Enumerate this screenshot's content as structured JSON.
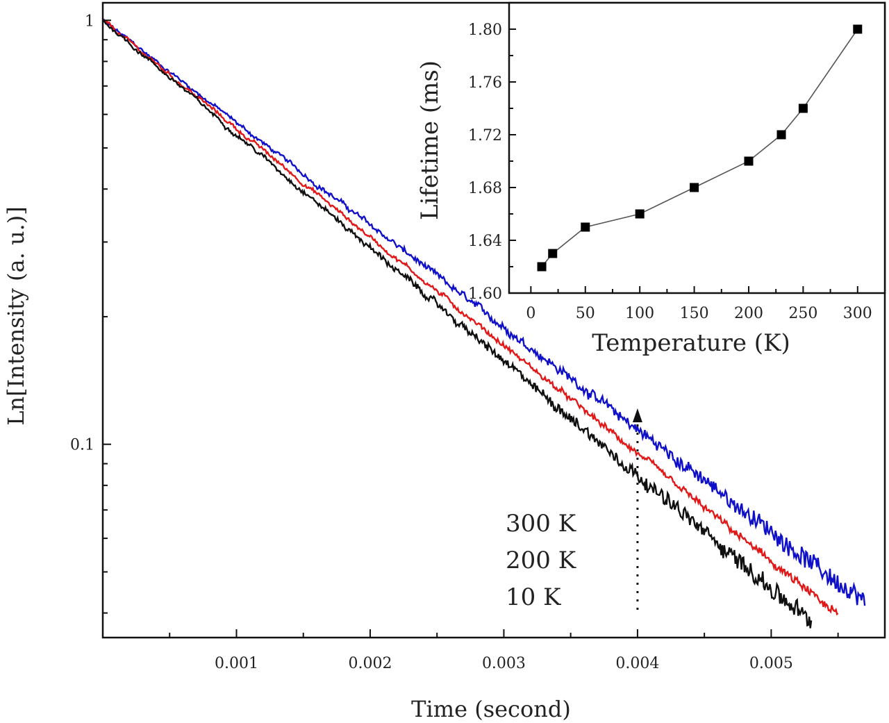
{
  "chart_data": [
    {
      "type": "line",
      "role": "main",
      "xlabel": "Time (second)",
      "ylabel": "Ln[Intensity (a. u.)]",
      "xlim": [
        0.0,
        0.00585
      ],
      "ylim": [
        0.035,
        1.1
      ],
      "yscale": "log",
      "xticks": [
        0.001,
        0.002,
        0.003,
        0.004,
        0.005
      ],
      "xtick_labels": [
        "0.001",
        "0.002",
        "0.003",
        "0.004",
        "0.005"
      ],
      "yticks": [
        0.1,
        1
      ],
      "ytick_labels": [
        "0.1",
        "1"
      ],
      "grid": false,
      "series": [
        {
          "name": "300 K",
          "color": "#1010c8",
          "x_start": 0.0,
          "x_end": 0.0057,
          "lifetime_ms": 1.8
        },
        {
          "name": "200 K",
          "color": "#e01818",
          "x_start": 0.0,
          "x_end": 0.0055,
          "lifetime_ms": 1.7
        },
        {
          "name": "10 K",
          "color": "#101010",
          "x_start": 0.0,
          "x_end": 0.0053,
          "lifetime_ms": 1.62
        }
      ],
      "legend_labels": [
        "300 K",
        "200 K",
        "10   K"
      ],
      "annotation_arrow_x": 0.004
    },
    {
      "type": "line",
      "role": "inset",
      "xlabel": "Temperature (K)",
      "ylabel": "Lifetime (ms)",
      "xlim": [
        -20,
        325
      ],
      "ylim": [
        1.6,
        1.82
      ],
      "xticks": [
        0,
        50,
        100,
        150,
        200,
        250,
        300
      ],
      "xtick_labels": [
        "0",
        "50",
        "100",
        "150",
        "200",
        "250",
        "300"
      ],
      "yticks": [
        1.6,
        1.64,
        1.68,
        1.72,
        1.76,
        1.8
      ],
      "ytick_labels": [
        "1.60",
        "1.64",
        "1.68",
        "1.72",
        "1.76",
        "1.80"
      ],
      "grid": false,
      "x": [
        10,
        20,
        50,
        100,
        150,
        200,
        230,
        250,
        300
      ],
      "y": [
        1.62,
        1.63,
        1.65,
        1.66,
        1.68,
        1.7,
        1.72,
        1.74,
        1.8
      ],
      "marker": "square",
      "color": "#000000"
    }
  ]
}
